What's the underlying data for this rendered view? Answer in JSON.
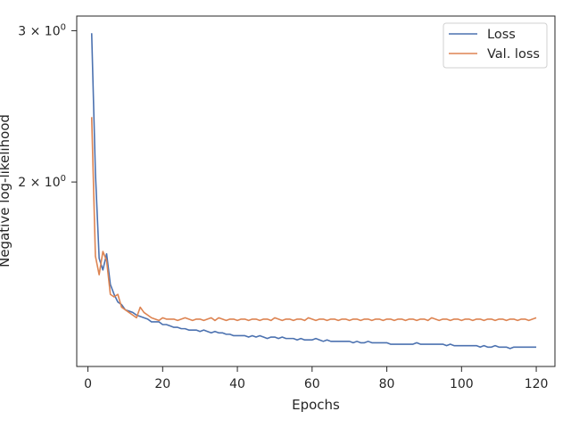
{
  "chart_data": {
    "type": "line",
    "xlabel": "Epochs",
    "ylabel": "Negative log-likelihood",
    "xlim": [
      -3,
      125
    ],
    "ylim": [
      1.22,
      3.12
    ],
    "yscale": "log",
    "x_ticks": [
      0,
      20,
      40,
      60,
      80,
      100,
      120
    ],
    "x_tick_labels": [
      "0",
      "20",
      "40",
      "60",
      "80",
      "100",
      "120"
    ],
    "y_ticks": [
      2.0,
      3.0
    ],
    "y_tick_labels": [
      {
        "base": "2 × 10",
        "exp": "0"
      },
      {
        "base": "3 × 10",
        "exp": "0"
      }
    ],
    "grid": false,
    "legend": {
      "position": "top-right",
      "entries": [
        "Loss",
        "Val. loss"
      ]
    },
    "series": [
      {
        "name": "Loss",
        "color": "#4c72b0",
        "x": [
          1,
          2,
          3,
          4,
          5,
          6,
          7,
          8,
          9,
          10,
          11,
          12,
          13,
          14,
          15,
          16,
          17,
          18,
          19,
          20,
          21,
          22,
          23,
          24,
          25,
          26,
          27,
          28,
          29,
          30,
          31,
          32,
          33,
          34,
          35,
          36,
          37,
          38,
          39,
          40,
          41,
          42,
          43,
          44,
          45,
          46,
          47,
          48,
          49,
          50,
          51,
          52,
          53,
          54,
          55,
          56,
          57,
          58,
          59,
          60,
          61,
          62,
          63,
          64,
          65,
          66,
          67,
          68,
          69,
          70,
          71,
          72,
          73,
          74,
          75,
          76,
          77,
          78,
          79,
          80,
          81,
          82,
          83,
          84,
          85,
          86,
          87,
          88,
          89,
          90,
          91,
          92,
          93,
          94,
          95,
          96,
          97,
          98,
          99,
          100,
          101,
          102,
          103,
          104,
          105,
          106,
          107,
          108,
          109,
          110,
          111,
          112,
          113,
          114,
          115,
          116,
          117,
          118,
          119,
          120
        ],
        "values": [
          2.98,
          2.05,
          1.63,
          1.58,
          1.65,
          1.52,
          1.48,
          1.45,
          1.44,
          1.42,
          1.415,
          1.41,
          1.4,
          1.395,
          1.39,
          1.385,
          1.375,
          1.375,
          1.375,
          1.365,
          1.365,
          1.36,
          1.355,
          1.355,
          1.35,
          1.35,
          1.345,
          1.345,
          1.345,
          1.34,
          1.345,
          1.34,
          1.335,
          1.34,
          1.335,
          1.335,
          1.33,
          1.33,
          1.325,
          1.325,
          1.325,
          1.325,
          1.32,
          1.325,
          1.32,
          1.325,
          1.32,
          1.315,
          1.32,
          1.32,
          1.315,
          1.32,
          1.315,
          1.315,
          1.315,
          1.31,
          1.315,
          1.31,
          1.31,
          1.31,
          1.315,
          1.31,
          1.305,
          1.31,
          1.305,
          1.305,
          1.305,
          1.305,
          1.305,
          1.305,
          1.3,
          1.305,
          1.3,
          1.3,
          1.305,
          1.3,
          1.3,
          1.3,
          1.3,
          1.3,
          1.295,
          1.295,
          1.295,
          1.295,
          1.295,
          1.295,
          1.295,
          1.3,
          1.295,
          1.295,
          1.295,
          1.295,
          1.295,
          1.295,
          1.295,
          1.29,
          1.295,
          1.29,
          1.29,
          1.29,
          1.29,
          1.29,
          1.29,
          1.29,
          1.285,
          1.29,
          1.285,
          1.285,
          1.29,
          1.285,
          1.285,
          1.285,
          1.28,
          1.285,
          1.285,
          1.285,
          1.285,
          1.285,
          1.285,
          1.285
        ]
      },
      {
        "name": "Val. loss",
        "color": "#dd8452",
        "x": [
          1,
          2,
          3,
          4,
          5,
          6,
          7,
          8,
          9,
          10,
          11,
          12,
          13,
          14,
          15,
          16,
          17,
          18,
          19,
          20,
          21,
          22,
          23,
          24,
          25,
          26,
          27,
          28,
          29,
          30,
          31,
          32,
          33,
          34,
          35,
          36,
          37,
          38,
          39,
          40,
          41,
          42,
          43,
          44,
          45,
          46,
          47,
          48,
          49,
          50,
          51,
          52,
          53,
          54,
          55,
          56,
          57,
          58,
          59,
          60,
          61,
          62,
          63,
          64,
          65,
          66,
          67,
          68,
          69,
          70,
          71,
          72,
          73,
          74,
          75,
          76,
          77,
          78,
          79,
          80,
          81,
          82,
          83,
          84,
          85,
          86,
          87,
          88,
          89,
          90,
          91,
          92,
          93,
          94,
          95,
          96,
          97,
          98,
          99,
          100,
          101,
          102,
          103,
          104,
          105,
          106,
          107,
          108,
          109,
          110,
          111,
          112,
          113,
          114,
          115,
          116,
          117,
          118,
          119,
          120
        ],
        "values": [
          2.38,
          1.64,
          1.56,
          1.66,
          1.62,
          1.48,
          1.47,
          1.48,
          1.43,
          1.42,
          1.41,
          1.4,
          1.39,
          1.43,
          1.41,
          1.4,
          1.39,
          1.385,
          1.38,
          1.39,
          1.385,
          1.385,
          1.385,
          1.38,
          1.385,
          1.39,
          1.385,
          1.38,
          1.385,
          1.385,
          1.38,
          1.385,
          1.39,
          1.38,
          1.39,
          1.385,
          1.38,
          1.385,
          1.385,
          1.38,
          1.385,
          1.385,
          1.38,
          1.385,
          1.385,
          1.38,
          1.385,
          1.385,
          1.38,
          1.39,
          1.385,
          1.38,
          1.385,
          1.385,
          1.38,
          1.385,
          1.385,
          1.38,
          1.39,
          1.385,
          1.38,
          1.385,
          1.385,
          1.38,
          1.385,
          1.385,
          1.38,
          1.385,
          1.385,
          1.38,
          1.385,
          1.385,
          1.38,
          1.385,
          1.385,
          1.38,
          1.385,
          1.385,
          1.38,
          1.385,
          1.385,
          1.38,
          1.385,
          1.385,
          1.38,
          1.385,
          1.385,
          1.38,
          1.385,
          1.385,
          1.38,
          1.39,
          1.385,
          1.38,
          1.385,
          1.385,
          1.38,
          1.385,
          1.385,
          1.38,
          1.385,
          1.385,
          1.38,
          1.385,
          1.385,
          1.38,
          1.385,
          1.385,
          1.38,
          1.385,
          1.385,
          1.38,
          1.385,
          1.385,
          1.38,
          1.385,
          1.385,
          1.38,
          1.385,
          1.39
        ]
      }
    ]
  }
}
